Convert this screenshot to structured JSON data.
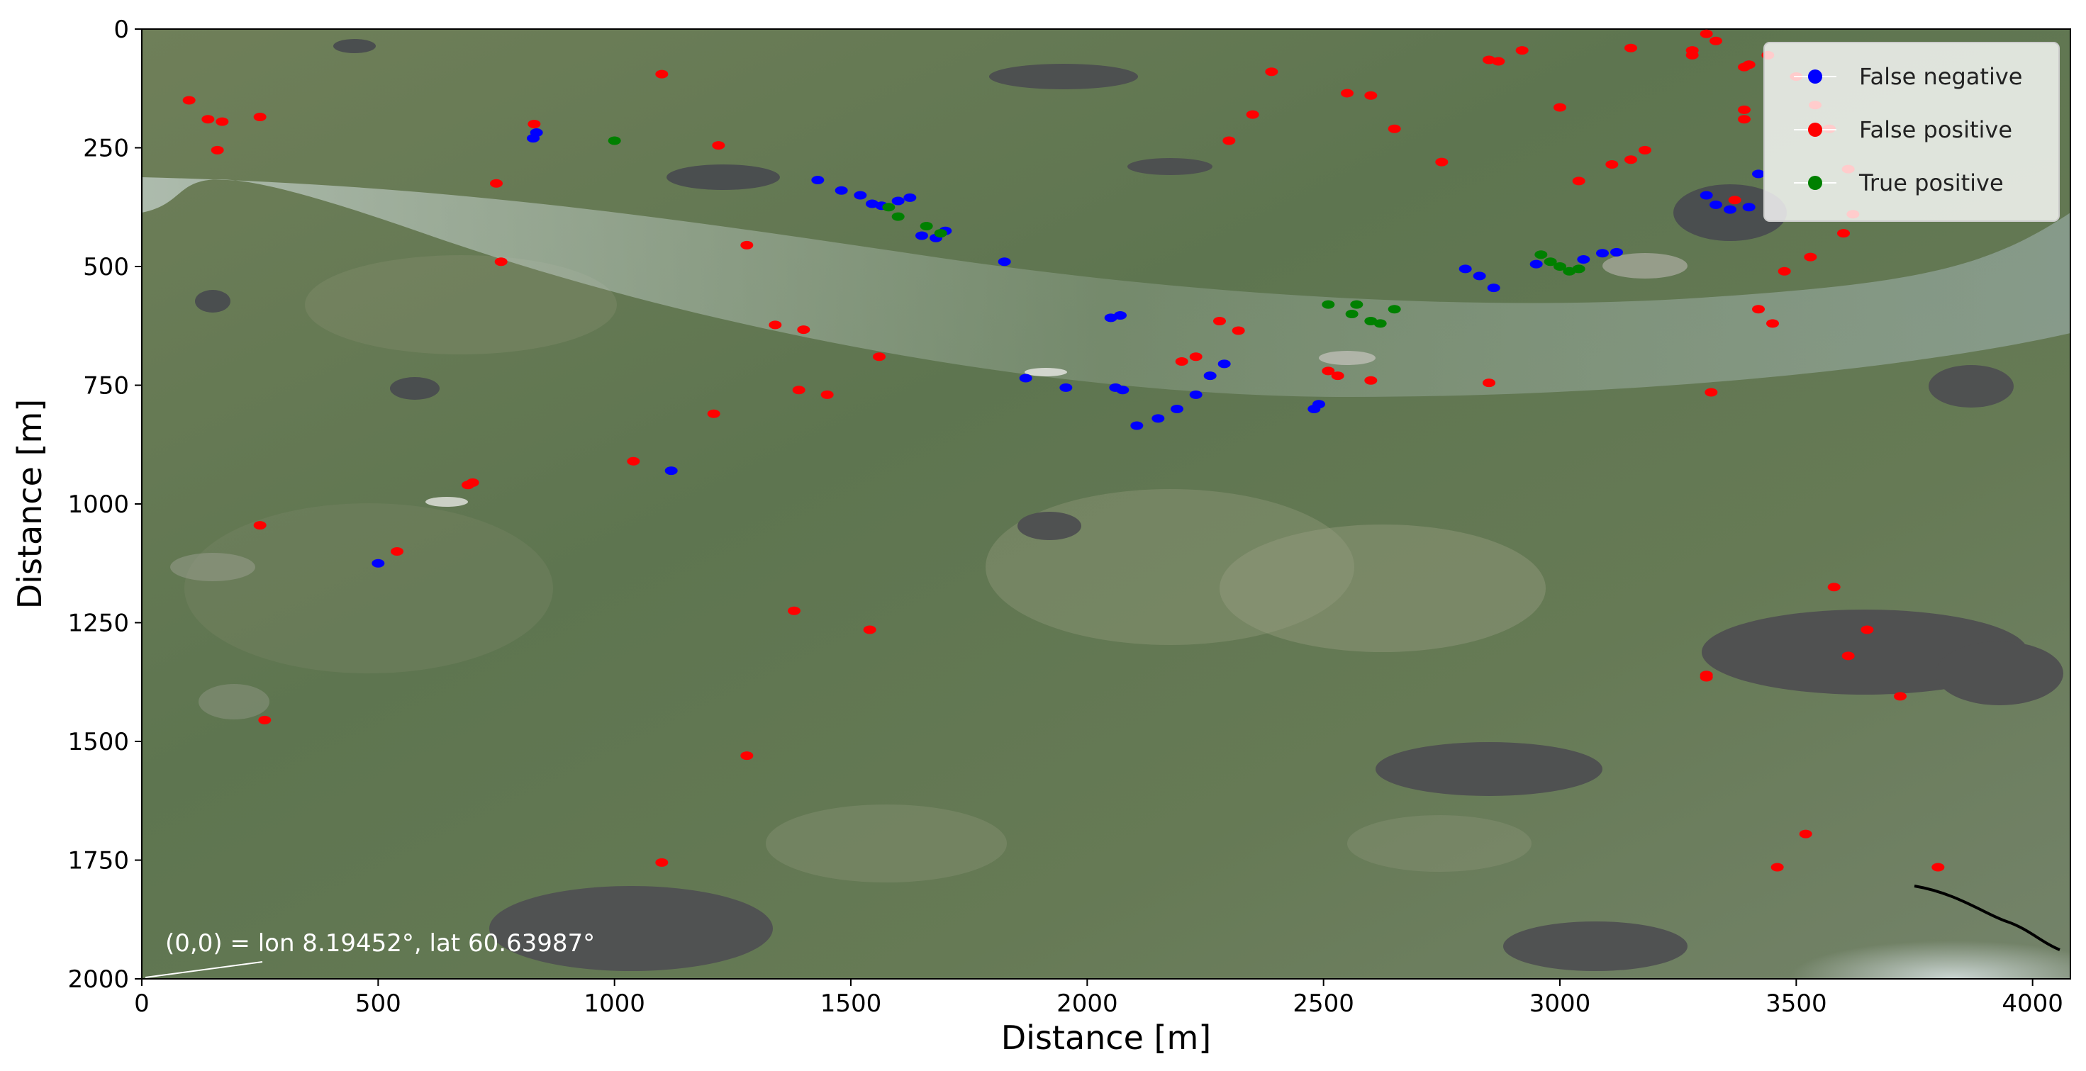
{
  "chart_data": {
    "type": "scatter",
    "title": "",
    "xlabel": "Distance [m]",
    "ylabel": "Distance [m]",
    "xlim": [
      0,
      4080
    ],
    "ylim": [
      2000,
      0
    ],
    "y_inverted": true,
    "xticks": [
      0,
      500,
      1000,
      1500,
      2000,
      2500,
      3000,
      3500,
      4000
    ],
    "yticks": [
      0,
      250,
      500,
      750,
      1000,
      1250,
      1500,
      1750,
      2000
    ],
    "grid": false,
    "legend_position": "top-right",
    "background": "satellite image (optical, green terrain with lakes and valley)",
    "annotation": "(0,0) = lon 8.19452°, lat 60.63987°",
    "series": [
      {
        "name": "False negative",
        "color": "#0000ff",
        "points": [
          [
            828,
            230
          ],
          [
            835,
            218
          ],
          [
            1430,
            318
          ],
          [
            1480,
            340
          ],
          [
            1520,
            350
          ],
          [
            1545,
            368
          ],
          [
            1565,
            372
          ],
          [
            1600,
            362
          ],
          [
            1625,
            355
          ],
          [
            1650,
            435
          ],
          [
            1680,
            440
          ],
          [
            1700,
            425
          ],
          [
            1825,
            490
          ],
          [
            2050,
            608
          ],
          [
            2070,
            603
          ],
          [
            1870,
            735
          ],
          [
            1955,
            755
          ],
          [
            2060,
            755
          ],
          [
            2075,
            760
          ],
          [
            2105,
            835
          ],
          [
            2150,
            820
          ],
          [
            2190,
            800
          ],
          [
            2230,
            770
          ],
          [
            2260,
            730
          ],
          [
            2290,
            705
          ],
          [
            2480,
            800
          ],
          [
            2490,
            790
          ],
          [
            2800,
            505
          ],
          [
            2830,
            520
          ],
          [
            2860,
            545
          ],
          [
            2950,
            495
          ],
          [
            3050,
            485
          ],
          [
            3090,
            472
          ],
          [
            3120,
            470
          ],
          [
            3310,
            350
          ],
          [
            3330,
            370
          ],
          [
            3360,
            380
          ],
          [
            3400,
            375
          ],
          [
            3420,
            305
          ],
          [
            1120,
            930
          ],
          [
            500,
            1125
          ]
        ]
      },
      {
        "name": "False positive",
        "color": "#ff0000",
        "points": [
          [
            100,
            150
          ],
          [
            140,
            190
          ],
          [
            170,
            195
          ],
          [
            160,
            255
          ],
          [
            250,
            185
          ],
          [
            830,
            200
          ],
          [
            1100,
            95
          ],
          [
            1220,
            245
          ],
          [
            750,
            325
          ],
          [
            1280,
            455
          ],
          [
            1340,
            623
          ],
          [
            1400,
            633
          ],
          [
            1560,
            690
          ],
          [
            1390,
            760
          ],
          [
            1450,
            770
          ],
          [
            1040,
            910
          ],
          [
            700,
            955
          ],
          [
            1210,
            810
          ],
          [
            2300,
            235
          ],
          [
            2350,
            180
          ],
          [
            2390,
            90
          ],
          [
            2550,
            135
          ],
          [
            2600,
            140
          ],
          [
            2650,
            210
          ],
          [
            2850,
            65
          ],
          [
            2870,
            68
          ],
          [
            2920,
            45
          ],
          [
            3000,
            165
          ],
          [
            3150,
            40
          ],
          [
            3280,
            55
          ],
          [
            3390,
            80
          ],
          [
            3390,
            190
          ],
          [
            3280,
            45
          ],
          [
            3310,
            10
          ],
          [
            3400,
            75
          ],
          [
            3440,
            55
          ],
          [
            3330,
            25
          ],
          [
            3390,
            170
          ],
          [
            3500,
            100
          ],
          [
            3540,
            160
          ],
          [
            3370,
            360
          ],
          [
            3475,
            510
          ],
          [
            3530,
            480
          ],
          [
            3600,
            430
          ],
          [
            3620,
            390
          ],
          [
            3570,
            210
          ],
          [
            3610,
            295
          ],
          [
            2750,
            280
          ],
          [
            3420,
            590
          ],
          [
            3450,
            620
          ],
          [
            3320,
            765
          ],
          [
            2280,
            615
          ],
          [
            2320,
            635
          ],
          [
            2510,
            720
          ],
          [
            2530,
            730
          ],
          [
            2600,
            740
          ],
          [
            2850,
            745
          ],
          [
            3040,
            320
          ],
          [
            3110,
            285
          ],
          [
            3150,
            275
          ],
          [
            3180,
            255
          ],
          [
            2200,
            700
          ],
          [
            2230,
            690
          ],
          [
            250,
            1045
          ],
          [
            540,
            1100
          ],
          [
            690,
            960
          ],
          [
            1380,
            1225
          ],
          [
            1540,
            1265
          ],
          [
            3310,
            1360
          ],
          [
            3580,
            1175
          ],
          [
            3610,
            1320
          ],
          [
            3650,
            1265
          ],
          [
            3310,
            1365
          ],
          [
            3720,
            1405
          ],
          [
            3520,
            1695
          ],
          [
            3460,
            1765
          ],
          [
            3800,
            1765
          ],
          [
            260,
            1455
          ],
          [
            1100,
            1755
          ],
          [
            1280,
            1530
          ],
          [
            760,
            490
          ]
        ]
      },
      {
        "name": "True positive",
        "color": "#008000",
        "points": [
          [
            1000,
            235
          ],
          [
            1580,
            375
          ],
          [
            1600,
            395
          ],
          [
            1660,
            415
          ],
          [
            1690,
            430
          ],
          [
            2510,
            580
          ],
          [
            2560,
            600
          ],
          [
            2600,
            615
          ],
          [
            2620,
            620
          ],
          [
            2650,
            590
          ],
          [
            2960,
            475
          ],
          [
            2980,
            490
          ],
          [
            3000,
            500
          ],
          [
            3020,
            510
          ],
          [
            3040,
            505
          ],
          [
            2570,
            580
          ]
        ]
      }
    ]
  }
}
